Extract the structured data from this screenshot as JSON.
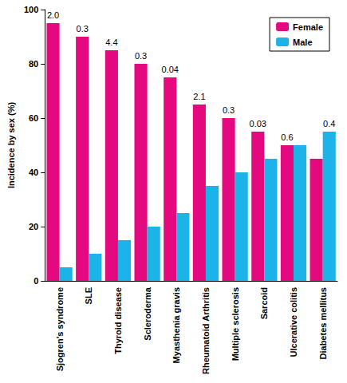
{
  "chart_data": {
    "type": "bar",
    "categories": [
      "Sjogren's syndrome",
      "SLE",
      "Thyroid disease",
      "Scleroderma",
      "Myasthenia gravis",
      "Rheumatoid Arthritis",
      "Multiple sclerosis",
      "Sarcoid",
      "Ulcerative colitis",
      "Diabetes mellitus"
    ],
    "series": [
      {
        "name": "Female",
        "color": "#e4097f",
        "values": [
          95,
          90,
          85,
          80,
          75,
          65,
          60,
          55,
          50,
          45
        ]
      },
      {
        "name": "Male",
        "color": "#1cb3e8",
        "values": [
          5,
          10,
          15,
          20,
          25,
          35,
          40,
          45,
          50,
          55
        ]
      }
    ],
    "annotations": [
      "2.0",
      "0.3",
      "4.4",
      "0.3",
      "0.04",
      "2.1",
      "0.3",
      "0.03",
      "0.6",
      "0.4"
    ],
    "ylabel": "Incidence by sex (%)",
    "ylim": [
      0,
      100
    ],
    "yticks": [
      0,
      20,
      40,
      60,
      80,
      100
    ],
    "grid": false,
    "legend": "upper right"
  }
}
